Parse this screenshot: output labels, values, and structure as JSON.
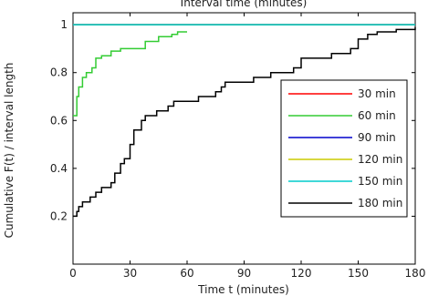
{
  "chart_data": {
    "type": "line",
    "title": "Interval time (minutes)",
    "xlabel": "Time t (minutes)",
    "ylabel": "Cumulative F(t) / interval length",
    "xlim": [
      0,
      180
    ],
    "ylim": [
      0,
      1.05
    ],
    "xticks": [
      0,
      30,
      60,
      90,
      120,
      150,
      180
    ],
    "xtick_labels": [
      "0",
      "30",
      "60",
      "90",
      "120",
      "150",
      "180"
    ],
    "yticks": [
      0.2,
      0.4,
      0.6,
      0.8,
      1
    ],
    "ytick_labels": [
      "0.2",
      "0.4",
      "0.6",
      "0.8",
      "1"
    ],
    "grid": false,
    "legend_position": "bottom-right",
    "series": [
      {
        "name": "30 min",
        "color": "#ff0000",
        "x": [
          0,
          180
        ],
        "y": [
          1,
          1
        ]
      },
      {
        "name": "60 min",
        "color": "#33cc33",
        "x": [
          0,
          2,
          3,
          5,
          7,
          10,
          12,
          15,
          20,
          25,
          30,
          38,
          45,
          52,
          55,
          60
        ],
        "y": [
          0.62,
          0.7,
          0.74,
          0.78,
          0.8,
          0.82,
          0.86,
          0.87,
          0.89,
          0.9,
          0.9,
          0.93,
          0.95,
          0.96,
          0.97,
          0.97
        ]
      },
      {
        "name": "90 min",
        "color": "#0000cc",
        "x": [
          0,
          180
        ],
        "y": [
          1,
          1
        ]
      },
      {
        "name": "120 min",
        "color": "#cccc00",
        "x": [
          0,
          180
        ],
        "y": [
          1,
          1
        ]
      },
      {
        "name": "150 min",
        "color": "#00cccc",
        "x": [
          0,
          180
        ],
        "y": [
          1,
          1
        ]
      },
      {
        "name": "180 min",
        "color": "#000000",
        "x": [
          0,
          2,
          3,
          5,
          9,
          12,
          15,
          20,
          22,
          25,
          27,
          30,
          32,
          36,
          38,
          44,
          50,
          53,
          66,
          75,
          78,
          80,
          95,
          104,
          116,
          120,
          136,
          146,
          150,
          155,
          160,
          165,
          170,
          175,
          180
        ],
        "y": [
          0.2,
          0.22,
          0.24,
          0.26,
          0.28,
          0.3,
          0.32,
          0.34,
          0.38,
          0.42,
          0.44,
          0.5,
          0.56,
          0.6,
          0.62,
          0.64,
          0.66,
          0.68,
          0.7,
          0.72,
          0.74,
          0.76,
          0.78,
          0.8,
          0.82,
          0.86,
          0.88,
          0.9,
          0.94,
          0.96,
          0.97,
          0.97,
          0.98,
          0.98,
          0.99
        ]
      }
    ]
  }
}
